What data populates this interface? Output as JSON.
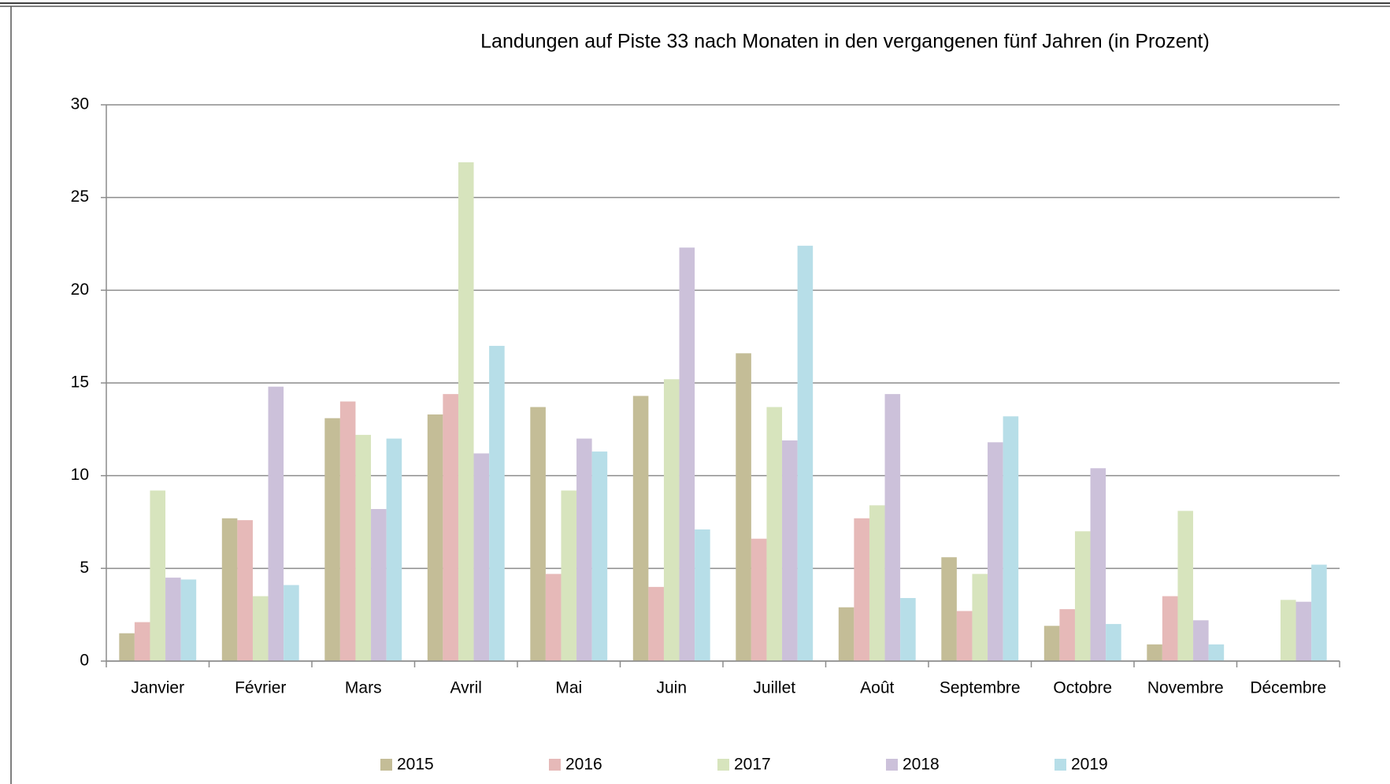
{
  "chart_data": {
    "type": "bar",
    "title": "Landungen auf Piste 33 nach Monaten in den vergangenen fünf Jahren (in Prozent)",
    "categories": [
      "Janvier",
      "Février",
      "Mars",
      "Avril",
      "Mai",
      "Juin",
      "Juillet",
      "Août",
      "Septembre",
      "Octobre",
      "Novembre",
      "Décembre"
    ],
    "series": [
      {
        "name": "2015",
        "color": "#c4bd97",
        "values": [
          1.5,
          7.7,
          13.1,
          13.3,
          13.7,
          14.3,
          16.6,
          2.9,
          5.6,
          1.9,
          0.9,
          null
        ]
      },
      {
        "name": "2016",
        "color": "#e6b9b8",
        "values": [
          2.1,
          7.6,
          14.0,
          14.4,
          4.7,
          4.0,
          6.6,
          7.7,
          2.7,
          2.8,
          3.5,
          null
        ]
      },
      {
        "name": "2017",
        "color": "#d7e4bd",
        "values": [
          9.2,
          3.5,
          12.2,
          26.9,
          9.2,
          15.2,
          13.7,
          8.4,
          4.7,
          7.0,
          8.1,
          3.3
        ]
      },
      {
        "name": "2018",
        "color": "#ccc1da",
        "values": [
          4.5,
          14.8,
          8.2,
          11.2,
          12.0,
          22.3,
          11.9,
          14.4,
          11.8,
          10.4,
          2.2,
          3.2
        ]
      },
      {
        "name": "2019",
        "color": "#b7dee8",
        "values": [
          4.4,
          4.1,
          12.0,
          17.0,
          11.3,
          7.1,
          22.4,
          3.4,
          13.2,
          2.0,
          0.9,
          5.2
        ]
      }
    ],
    "ylim": [
      0,
      30
    ],
    "yticks": [
      0,
      5,
      10,
      15,
      20,
      25,
      30
    ],
    "grid": true,
    "legend": "bottom"
  }
}
